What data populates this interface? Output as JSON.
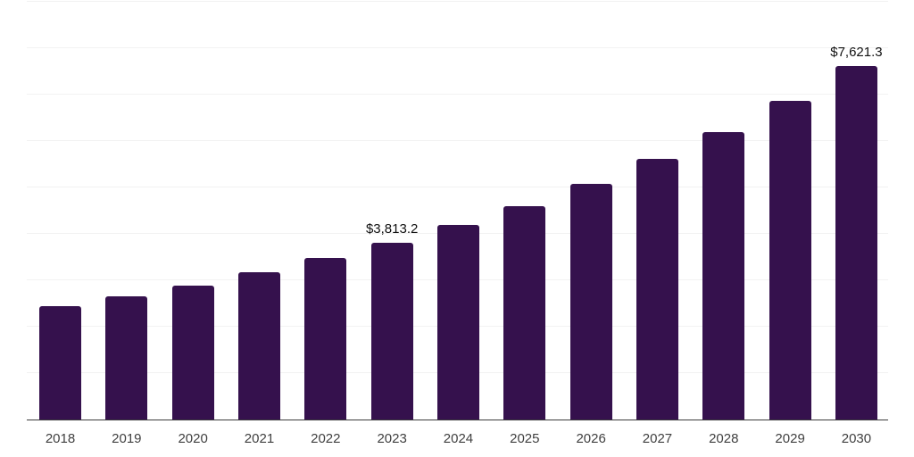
{
  "chart_data": {
    "type": "bar",
    "title": "",
    "xlabel": "",
    "ylabel": "",
    "categories": [
      "2018",
      "2019",
      "2020",
      "2021",
      "2022",
      "2023",
      "2024",
      "2025",
      "2026",
      "2027",
      "2028",
      "2029",
      "2030"
    ],
    "values": [
      2440,
      2650,
      2880,
      3170,
      3475,
      3813.2,
      4185,
      4605,
      5070,
      5625,
      6200,
      6875,
      7621.3
    ],
    "value_labels": {
      "2023": "$3,813.2",
      "2030": "$7,621.3"
    },
    "ylim": [
      0,
      9000
    ],
    "gridline_step": 1000,
    "grid": "horizontal",
    "legend": "none",
    "colors": {
      "bar": "#35114d",
      "gridline": "#f2f2f2",
      "axis_line": "#3c3c3c",
      "tick_label": "#404040",
      "value_label": "#111111",
      "background": "#ffffff"
    }
  }
}
